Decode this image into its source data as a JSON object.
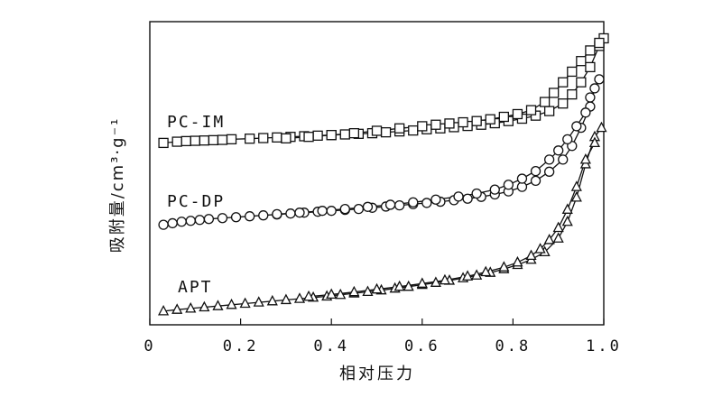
{
  "chart_data": {
    "type": "scatter",
    "xlabel": "相对压力",
    "ylabel": "吸附量/cm³·g⁻¹",
    "xlim": [
      0,
      1.0
    ],
    "ylim": [
      0,
      1
    ],
    "x_ticks": [
      "0",
      "0.2",
      "0.4",
      "0.6",
      "0.8",
      "1.0"
    ],
    "grid": false,
    "series": [
      {
        "name": "PC-IM",
        "marker": "square",
        "adsorption": [
          [
            0.03,
            0.6
          ],
          [
            0.06,
            0.604
          ],
          [
            0.08,
            0.606
          ],
          [
            0.1,
            0.607
          ],
          [
            0.12,
            0.608
          ],
          [
            0.14,
            0.609
          ],
          [
            0.16,
            0.61
          ],
          [
            0.18,
            0.612
          ],
          [
            0.22,
            0.614
          ],
          [
            0.25,
            0.616
          ],
          [
            0.28,
            0.618
          ],
          [
            0.31,
            0.62
          ],
          [
            0.34,
            0.622
          ],
          [
            0.37,
            0.624
          ],
          [
            0.4,
            0.626
          ],
          [
            0.43,
            0.628
          ],
          [
            0.46,
            0.63
          ],
          [
            0.49,
            0.632
          ],
          [
            0.52,
            0.635
          ],
          [
            0.55,
            0.638
          ],
          [
            0.58,
            0.641
          ],
          [
            0.61,
            0.645
          ],
          [
            0.64,
            0.648
          ],
          [
            0.67,
            0.652
          ],
          [
            0.7,
            0.656
          ],
          [
            0.73,
            0.66
          ],
          [
            0.76,
            0.665
          ],
          [
            0.79,
            0.672
          ],
          [
            0.82,
            0.68
          ],
          [
            0.85,
            0.69
          ],
          [
            0.88,
            0.705
          ],
          [
            0.91,
            0.73
          ],
          [
            0.93,
            0.76
          ],
          [
            0.95,
            0.8
          ],
          [
            0.97,
            0.85
          ],
          [
            0.99,
            0.92
          ],
          [
            1.0,
            0.945
          ]
        ],
        "desorption": [
          [
            0.3,
            0.615
          ],
          [
            0.35,
            0.62
          ],
          [
            0.4,
            0.626
          ],
          [
            0.45,
            0.632
          ],
          [
            0.5,
            0.64
          ],
          [
            0.55,
            0.648
          ],
          [
            0.6,
            0.655
          ],
          [
            0.63,
            0.66
          ],
          [
            0.66,
            0.664
          ],
          [
            0.69,
            0.668
          ],
          [
            0.72,
            0.672
          ],
          [
            0.75,
            0.678
          ],
          [
            0.78,
            0.686
          ],
          [
            0.81,
            0.695
          ],
          [
            0.84,
            0.708
          ],
          [
            0.87,
            0.735
          ],
          [
            0.89,
            0.765
          ],
          [
            0.91,
            0.8
          ],
          [
            0.93,
            0.835
          ],
          [
            0.95,
            0.87
          ],
          [
            0.97,
            0.905
          ],
          [
            0.99,
            0.93
          ]
        ]
      },
      {
        "name": "PC-DP",
        "marker": "circle",
        "adsorption": [
          [
            0.03,
            0.33
          ],
          [
            0.05,
            0.335
          ],
          [
            0.07,
            0.34
          ],
          [
            0.09,
            0.343
          ],
          [
            0.11,
            0.346
          ],
          [
            0.13,
            0.349
          ],
          [
            0.16,
            0.352
          ],
          [
            0.19,
            0.355
          ],
          [
            0.22,
            0.358
          ],
          [
            0.25,
            0.361
          ],
          [
            0.28,
            0.364
          ],
          [
            0.31,
            0.367
          ],
          [
            0.34,
            0.37
          ],
          [
            0.37,
            0.373
          ],
          [
            0.4,
            0.376
          ],
          [
            0.43,
            0.379
          ],
          [
            0.46,
            0.382
          ],
          [
            0.49,
            0.386
          ],
          [
            0.52,
            0.39
          ],
          [
            0.55,
            0.394
          ],
          [
            0.58,
            0.398
          ],
          [
            0.61,
            0.402
          ],
          [
            0.64,
            0.406
          ],
          [
            0.67,
            0.411
          ],
          [
            0.7,
            0.416
          ],
          [
            0.73,
            0.422
          ],
          [
            0.76,
            0.43
          ],
          [
            0.79,
            0.44
          ],
          [
            0.82,
            0.455
          ],
          [
            0.85,
            0.475
          ],
          [
            0.88,
            0.505
          ],
          [
            0.91,
            0.545
          ],
          [
            0.93,
            0.59
          ],
          [
            0.95,
            0.65
          ],
          [
            0.97,
            0.72
          ],
          [
            0.98,
            0.78
          ],
          [
            0.99,
            0.81
          ]
        ],
        "desorption": [
          [
            0.28,
            0.365
          ],
          [
            0.33,
            0.37
          ],
          [
            0.38,
            0.376
          ],
          [
            0.43,
            0.382
          ],
          [
            0.48,
            0.389
          ],
          [
            0.53,
            0.396
          ],
          [
            0.58,
            0.404
          ],
          [
            0.63,
            0.413
          ],
          [
            0.68,
            0.423
          ],
          [
            0.72,
            0.433
          ],
          [
            0.76,
            0.446
          ],
          [
            0.79,
            0.462
          ],
          [
            0.82,
            0.482
          ],
          [
            0.85,
            0.507
          ],
          [
            0.88,
            0.545
          ],
          [
            0.9,
            0.575
          ],
          [
            0.92,
            0.612
          ],
          [
            0.94,
            0.655
          ],
          [
            0.96,
            0.7
          ],
          [
            0.97,
            0.75
          ]
        ]
      },
      {
        "name": "APT",
        "marker": "triangle",
        "adsorption": [
          [
            0.03,
            0.045
          ],
          [
            0.06,
            0.05
          ],
          [
            0.09,
            0.054
          ],
          [
            0.12,
            0.058
          ],
          [
            0.15,
            0.062
          ],
          [
            0.18,
            0.066
          ],
          [
            0.21,
            0.07
          ],
          [
            0.24,
            0.074
          ],
          [
            0.27,
            0.078
          ],
          [
            0.3,
            0.082
          ],
          [
            0.33,
            0.086
          ],
          [
            0.36,
            0.09
          ],
          [
            0.39,
            0.094
          ],
          [
            0.42,
            0.099
          ],
          [
            0.45,
            0.104
          ],
          [
            0.48,
            0.109
          ],
          [
            0.51,
            0.114
          ],
          [
            0.54,
            0.12
          ],
          [
            0.57,
            0.126
          ],
          [
            0.6,
            0.132
          ],
          [
            0.63,
            0.139
          ],
          [
            0.66,
            0.146
          ],
          [
            0.69,
            0.154
          ],
          [
            0.72,
            0.163
          ],
          [
            0.75,
            0.172
          ],
          [
            0.78,
            0.184
          ],
          [
            0.81,
            0.198
          ],
          [
            0.84,
            0.215
          ],
          [
            0.87,
            0.24
          ],
          [
            0.9,
            0.285
          ],
          [
            0.92,
            0.34
          ],
          [
            0.94,
            0.42
          ],
          [
            0.96,
            0.53
          ],
          [
            0.98,
            0.62
          ],
          [
            0.995,
            0.65
          ]
        ],
        "desorption": [
          [
            0.35,
            0.093
          ],
          [
            0.4,
            0.1
          ],
          [
            0.45,
            0.108
          ],
          [
            0.5,
            0.117
          ],
          [
            0.55,
            0.126
          ],
          [
            0.6,
            0.136
          ],
          [
            0.65,
            0.147
          ],
          [
            0.7,
            0.16
          ],
          [
            0.74,
            0.174
          ],
          [
            0.78,
            0.19
          ],
          [
            0.81,
            0.206
          ],
          [
            0.84,
            0.228
          ],
          [
            0.86,
            0.25
          ],
          [
            0.88,
            0.28
          ],
          [
            0.9,
            0.32
          ],
          [
            0.92,
            0.38
          ],
          [
            0.94,
            0.455
          ],
          [
            0.96,
            0.545
          ],
          [
            0.98,
            0.6
          ]
        ]
      }
    ]
  }
}
